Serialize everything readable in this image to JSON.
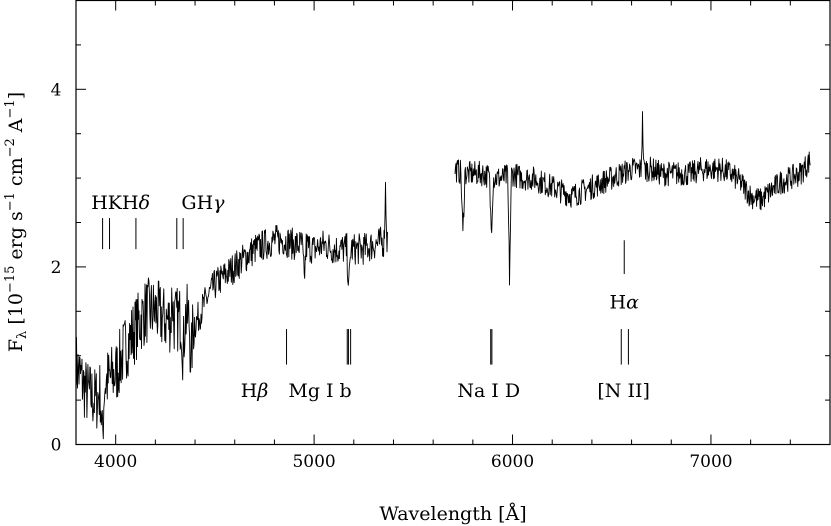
{
  "chart_data": {
    "type": "line",
    "xlabel": "Wavelength [Å]",
    "ylabel": "F_λ [10^-15 erg s^-1 cm^-2 A^-1]",
    "ylabel_parts": {
      "prefix": "F",
      "sub": "λ",
      "t1": " [10",
      "e1": "−15",
      "t2": " erg s",
      "e2": "−1",
      "t3": " cm",
      "e3": "−2",
      "t4": " A",
      "e4": "−1",
      "t5": "]"
    },
    "xlim": [
      3800,
      7600
    ],
    "ylim": [
      0,
      5
    ],
    "xticks": [
      4000,
      5000,
      6000,
      7000
    ],
    "yticks": [
      0,
      2,
      4
    ],
    "grid": false,
    "series": [
      {
        "segment": "blue",
        "x": [
          3800,
          3850,
          3900,
          3950,
          4000,
          4050,
          4100,
          4150,
          4200,
          4250,
          4300,
          4350,
          4400,
          4450,
          4500,
          4550,
          4600,
          4650,
          4700,
          4750,
          4800,
          4850,
          4900,
          4950,
          5000,
          5050,
          5100,
          5150,
          5200,
          5250,
          5300,
          5370
        ],
        "y": [
          0.9,
          0.6,
          0.5,
          0.7,
          0.8,
          1.1,
          1.3,
          1.5,
          1.5,
          1.4,
          1.4,
          1.45,
          1.35,
          1.6,
          1.8,
          1.9,
          2.0,
          2.1,
          2.2,
          2.25,
          2.3,
          2.3,
          2.25,
          2.25,
          2.2,
          2.25,
          2.2,
          2.2,
          2.2,
          2.2,
          2.25,
          2.3
        ]
      },
      {
        "segment": "red",
        "x": [
          5710,
          5750,
          5800,
          5850,
          5900,
          5950,
          6000,
          6050,
          6100,
          6150,
          6200,
          6250,
          6300,
          6350,
          6400,
          6450,
          6500,
          6550,
          6600,
          6650,
          6700,
          6750,
          6800,
          6850,
          6900,
          6950,
          7000,
          7050,
          7100,
          7150,
          7200,
          7250,
          7300,
          7350,
          7400,
          7450,
          7500
        ],
        "y": [
          3.1,
          3.05,
          3.05,
          3.05,
          3.0,
          3.0,
          3.05,
          3.0,
          3.0,
          2.95,
          2.9,
          2.85,
          2.8,
          2.85,
          2.9,
          2.95,
          3.0,
          3.05,
          3.1,
          3.1,
          3.1,
          3.05,
          3.05,
          3.05,
          3.05,
          3.1,
          3.1,
          3.1,
          3.05,
          2.95,
          2.8,
          2.75,
          2.85,
          2.95,
          3.0,
          3.05,
          3.2
        ]
      }
    ],
    "absorption_features": [
      {
        "x": 3933,
        "depth": 0.6
      },
      {
        "x": 4340,
        "depth": 0.45
      },
      {
        "x": 4380,
        "depth": 0.5
      },
      {
        "x": 4950,
        "depth": 0.4
      },
      {
        "x": 5175,
        "depth": 0.45
      },
      {
        "x": 5750,
        "depth": 0.7
      },
      {
        "x": 5893,
        "depth": 0.6
      },
      {
        "x": 5985,
        "depth": 1.15
      }
    ],
    "emission_features": [
      {
        "x": 6655,
        "height": 0.55
      },
      {
        "x": 5360,
        "height": 0.6
      },
      {
        "x": 4285,
        "height": 0.3
      }
    ],
    "line_groups": [
      {
        "id": "hk",
        "label": "HKHδ",
        "label_x": 4025,
        "label_y": 2.72,
        "marks": [
          3934,
          3969,
          4102
        ],
        "y0": 2.2,
        "y1": 2.55
      },
      {
        "id": "ghg",
        "label": "GHγ",
        "label_x": 4440,
        "label_y": 2.72,
        "marks": [
          4308,
          4340
        ],
        "y0": 2.2,
        "y1": 2.55
      },
      {
        "id": "hbeta",
        "label": "Hβ",
        "label_x": 4700,
        "label_y": 0.6,
        "marks": [
          4861
        ],
        "y0": 0.9,
        "y1": 1.3
      },
      {
        "id": "mgb",
        "label": "Mg I b",
        "label_x": 5030,
        "label_y": 0.6,
        "marks": [
          5167,
          5173,
          5184
        ],
        "y0": 0.9,
        "y1": 1.3
      },
      {
        "id": "nad",
        "label": "Na I D",
        "label_x": 5880,
        "label_y": 0.6,
        "marks": [
          5890,
          5896
        ],
        "y0": 0.9,
        "y1": 1.3
      },
      {
        "id": "halpha",
        "label": "Hα",
        "label_x": 6563,
        "label_y": 1.6,
        "marks": [
          6563
        ],
        "y0": 1.92,
        "y1": 2.3
      },
      {
        "id": "nii",
        "label": "[N II]",
        "label_x": 6560,
        "label_y": 0.6,
        "marks": [
          6548,
          6584
        ],
        "y0": 0.9,
        "y1": 1.3
      }
    ],
    "line_label_parts": {
      "hk": [
        "HKH",
        "δ"
      ],
      "ghg": [
        "GH",
        "γ"
      ],
      "hbeta": [
        "H",
        "β"
      ],
      "halpha": [
        "H",
        "α"
      ]
    }
  }
}
